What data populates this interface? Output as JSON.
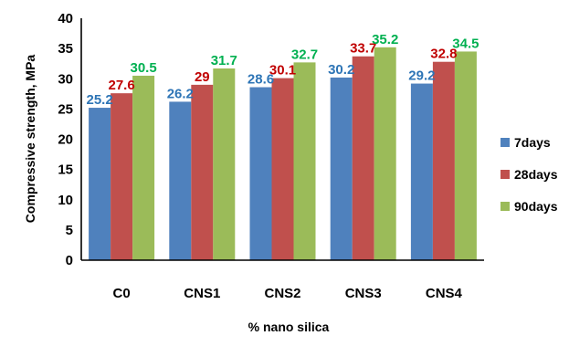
{
  "chart_data": {
    "type": "bar",
    "categories": [
      "C0",
      "CNS1",
      "CNS2",
      "CNS3",
      "CNS4"
    ],
    "series": [
      {
        "name": "7days",
        "values": [
          25.2,
          26.2,
          28.6,
          30.2,
          29.2
        ],
        "color": "#4F81BD",
        "label_color": "#2E75B6"
      },
      {
        "name": "28days",
        "values": [
          27.6,
          29,
          30.1,
          33.7,
          32.8
        ],
        "color": "#C0504D",
        "label_color": "#C00000"
      },
      {
        "name": "90days",
        "values": [
          30.5,
          31.7,
          32.7,
          35.2,
          34.5
        ],
        "color": "#9BBB59",
        "label_color": "#00B050"
      }
    ],
    "data_labels": [
      [
        "25.2",
        "26.2",
        "28.6",
        "30.2",
        "29.2"
      ],
      [
        "27.6",
        "29",
        "30.1",
        "33.7",
        "32.8"
      ],
      [
        "30.5",
        "31.7",
        "32.7",
        "35.2",
        "34.5"
      ]
    ],
    "yticks": [
      "0",
      "5",
      "10",
      "15",
      "20",
      "25",
      "30",
      "35",
      "40"
    ],
    "ylim": [
      0,
      40
    ],
    "xlabel": "% nano silica",
    "ylabel": "Compressive strength, MPa",
    "grid": false,
    "legend_position": "right"
  }
}
